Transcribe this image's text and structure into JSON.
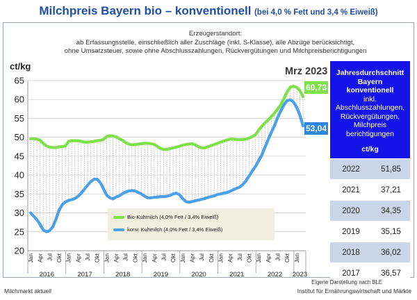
{
  "title": {
    "main": "Milchpreis Bayern bio – konventionell",
    "sub": "(bei 4,0 % Fett und 3,4 % Eiweiß)"
  },
  "source_note": [
    "Erzeugerstandort:",
    "ab Erfassungsstelle, einschließlich aller Zuschläge (inkl. S-Klasse), alle Abzüge berücksichtigt,",
    "ohne Umsatzsteuer, sowie ohne Abschlusszahlungen, Rückvergütungen und Milchpreisberichtigungen"
  ],
  "period_label": "Mrz 2023",
  "callouts": {
    "bio": "60,73",
    "konv": "53,04"
  },
  "side_panel": {
    "title_lines": [
      "Jahresdurchschnitt",
      "Bayern",
      "konventionell"
    ],
    "note_lines": [
      "inkl.",
      "Abschlusszahlungen,",
      "Rückvergütungen,",
      "Milchpreis",
      "berichtigungen"
    ],
    "unit": "ct/kg",
    "rows": [
      {
        "year": "2022",
        "value": "51,85"
      },
      {
        "year": "2021",
        "value": "37,21"
      },
      {
        "year": "2020",
        "value": "34,35"
      },
      {
        "year": "2019",
        "value": "35,15"
      },
      {
        "year": "2018",
        "value": "36,02"
      },
      {
        "year": "2017",
        "value": "36,57"
      }
    ]
  },
  "footer": {
    "left": "Milchmarkt aktuell",
    "right": "Institut für Ernährungswirtschaft und Märkte",
    "credit": "Eigene Darstellung nach BLE"
  },
  "colors": {
    "bio": "#7ee04a",
    "konv": "#4ca0e8",
    "title": "#1f4fa8",
    "panel": "#1414e8"
  },
  "chart_data": {
    "type": "line",
    "ylabel": "ct/kg",
    "ylim": [
      20,
      65
    ],
    "yticks": [
      20,
      25,
      30,
      35,
      40,
      45,
      50,
      55,
      60,
      65
    ],
    "month_labels": [
      "Jan",
      "Apr",
      "Jul",
      "Okt"
    ],
    "years": [
      "2016",
      "2017",
      "2018",
      "2019",
      "2020",
      "2021",
      "2022",
      "2023"
    ],
    "x_start": "2016-01",
    "x_end": "2023-03",
    "grid": "horizontal",
    "legend_position": "bottom-center",
    "series": [
      {
        "name": "Bio-Kuhmilch (4,0% Fett / 3,4% Eiweiß)",
        "color": "#7ee04a",
        "values": [
          49.6,
          49.6,
          49.5,
          49.2,
          48.4,
          47.7,
          47.4,
          47.3,
          47.3,
          47.5,
          47.5,
          47.7,
          48.9,
          49.1,
          49.1,
          49.1,
          48.9,
          48.7,
          48.7,
          48.8,
          48.9,
          49.1,
          49.2,
          49.4,
          50.2,
          50.4,
          50.3,
          50.1,
          49.6,
          49.2,
          48.6,
          48.2,
          48.0,
          48.1,
          48.2,
          48.3,
          48.4,
          48.4,
          48.3,
          48.1,
          47.6,
          47.0,
          46.8,
          46.8,
          47.0,
          47.2,
          47.4,
          47.6,
          47.9,
          48.1,
          48.2,
          48.3,
          48.0,
          47.5,
          47.2,
          47.2,
          47.5,
          47.8,
          48.1,
          48.4,
          48.7,
          49.0,
          49.3,
          49.5,
          49.5,
          49.4,
          49.4,
          49.4,
          49.5,
          49.8,
          50.2,
          50.7,
          51.9,
          52.9,
          53.8,
          54.6,
          55.5,
          56.4,
          57.5,
          58.6,
          60.3,
          62.0,
          63.3,
          63.5,
          63.2,
          62.4,
          60.73
        ]
      },
      {
        "name": "konv. Kuhmilch (4,0% Fett / 3,4% Eiweiß)",
        "color": "#4ca0e8",
        "values": [
          30.0,
          29.1,
          28.2,
          26.9,
          25.5,
          25.0,
          25.3,
          26.3,
          28.3,
          30.7,
          32.2,
          32.9,
          33.3,
          33.5,
          33.8,
          34.4,
          35.2,
          36.3,
          37.3,
          38.3,
          38.9,
          38.9,
          38.0,
          36.4,
          34.7,
          34.0,
          33.7,
          34.2,
          34.5,
          35.1,
          35.5,
          35.8,
          35.9,
          35.8,
          35.4,
          35.0,
          34.4,
          34.0,
          34.0,
          34.1,
          34.2,
          34.3,
          34.3,
          34.4,
          34.6,
          35.0,
          35.2,
          34.8,
          33.8,
          33.0,
          32.8,
          33.0,
          33.2,
          33.4,
          33.6,
          33.8,
          34.1,
          34.3,
          34.5,
          34.9,
          35.0,
          35.2,
          35.4,
          35.7,
          36.1,
          36.5,
          36.8,
          37.5,
          38.5,
          39.8,
          41.1,
          42.3,
          43.8,
          45.3,
          47.4,
          49.4,
          51.3,
          53.1,
          55.2,
          57.0,
          58.6,
          59.7,
          59.9,
          59.3,
          57.9,
          55.9,
          53.04
        ]
      }
    ]
  }
}
